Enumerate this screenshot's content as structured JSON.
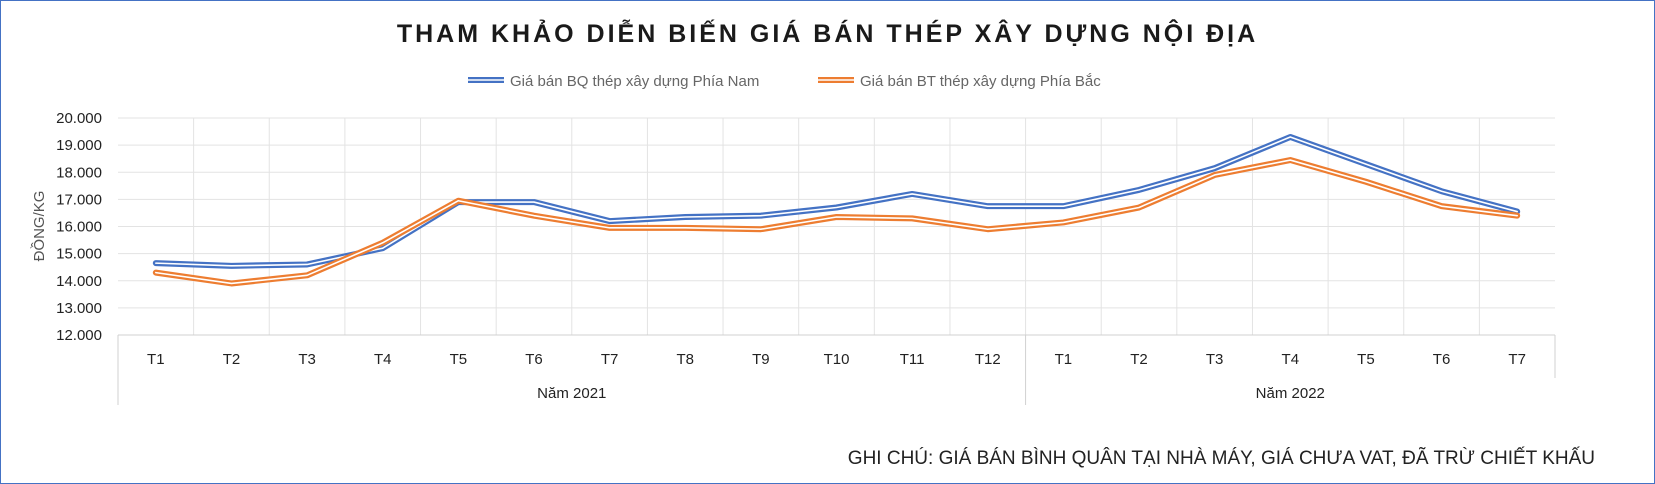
{
  "chart_data": {
    "type": "line",
    "title": "THAM KHẢO DIỄN BIẾN GIÁ BÁN THÉP XÂY DỰNG NỘI ĐỊA",
    "ylabel": "ĐỒNG/KG",
    "xlabel": "",
    "ylim": [
      12000,
      20000
    ],
    "y_tick_step": 1000,
    "y_ticks": [
      "12.000",
      "13.000",
      "14.000",
      "15.000",
      "16.000",
      "17.000",
      "18.000",
      "19.000",
      "20.000"
    ],
    "categories": [
      "T1",
      "T2",
      "T3",
      "T4",
      "T5",
      "T6",
      "T7",
      "T8",
      "T9",
      "T10",
      "T11",
      "T12",
      "T1",
      "T2",
      "T3",
      "T4",
      "T5",
      "T6",
      "T7"
    ],
    "groups": [
      {
        "label": "Năm 2021",
        "count": 12
      },
      {
        "label": "Năm 2022",
        "count": 7
      }
    ],
    "grid": true,
    "legend_position": "top",
    "series": [
      {
        "name": "Giá bán BQ thép xây dựng Phía Nam",
        "color": "#4472c4",
        "values": [
          14650,
          14550,
          14600,
          15200,
          16900,
          16900,
          16200,
          16350,
          16400,
          16700,
          17200,
          16750,
          16750,
          17350,
          18150,
          19300,
          18300,
          17300,
          16550
        ]
      },
      {
        "name": "Giá bán BT thép xây dựng Phía Bắc",
        "color": "#ed7d31",
        "values": [
          14300,
          13900,
          14200,
          15400,
          16950,
          16400,
          15950,
          15950,
          15900,
          16350,
          16300,
          15900,
          16150,
          16700,
          17900,
          18450,
          17650,
          16750,
          16400
        ]
      }
    ]
  },
  "footnote": "GHI CHÚ: GIÁ BÁN BÌNH QUÂN TẠI NHÀ MÁY, GIÁ CHƯA VAT, ĐÃ TRỪ CHIẾT KHẤU"
}
